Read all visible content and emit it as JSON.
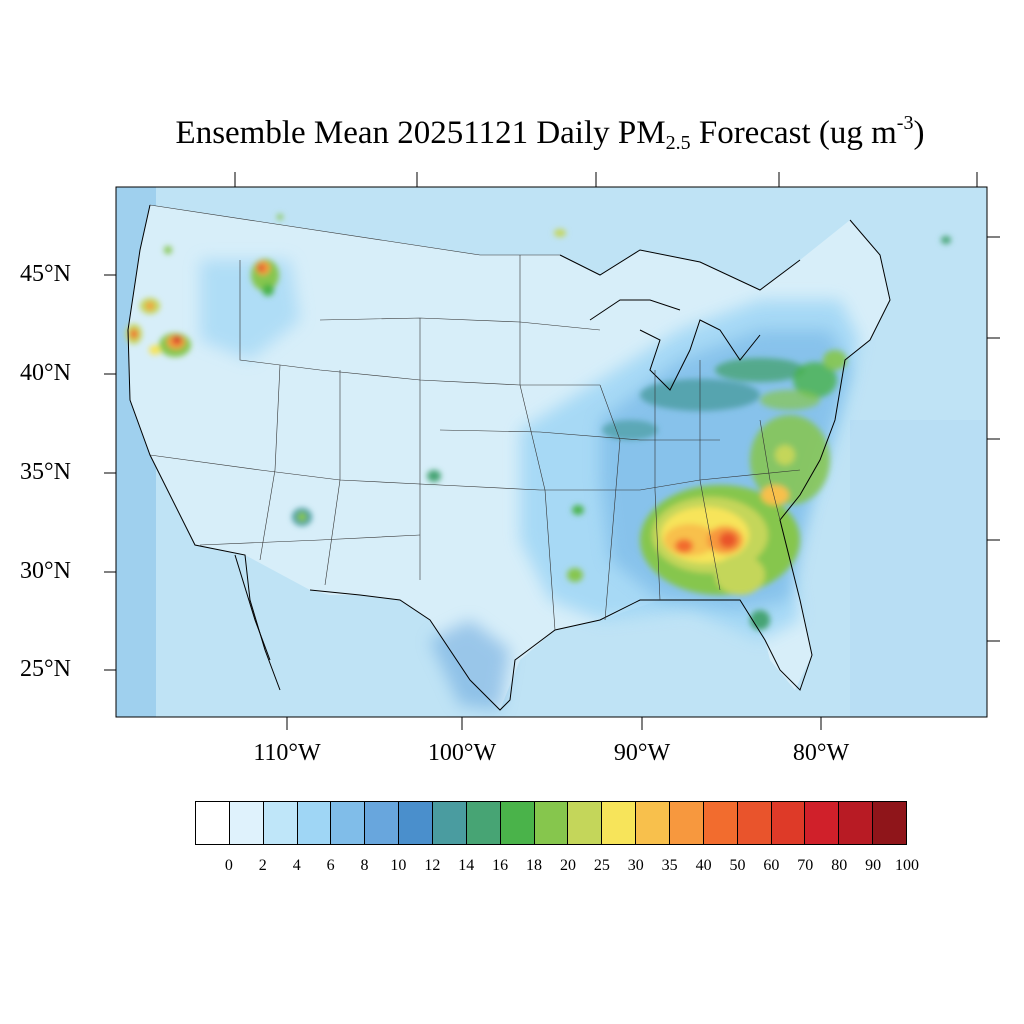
{
  "title": {
    "prefix": "Ensemble Mean 20251121 Daily PM",
    "subscript": "2.5",
    "middle": " Forecast (ug m",
    "superscript": "-3",
    "suffix": ")"
  },
  "map": {
    "projection": "lambert-conformal",
    "region": "CONUS",
    "lat_labels": [
      "45°N",
      "40°N",
      "35°N",
      "30°N",
      "25°N"
    ],
    "lon_labels": [
      "110°W",
      "100°W",
      "90°W",
      "80°W"
    ],
    "background_color": "#bfe3f5",
    "land_color": "#d7eef9",
    "hotspots": [
      {
        "name": "north-georgia-alabama",
        "value": 50
      },
      {
        "name": "southern-georgia",
        "value": 30
      },
      {
        "name": "carolinas",
        "value": 25
      },
      {
        "name": "ohio-valley",
        "value": 18
      },
      {
        "name": "northern-california",
        "value": 60
      },
      {
        "name": "oregon-coast",
        "value": 50
      },
      {
        "name": "idaho-montana",
        "value": 70
      },
      {
        "name": "arizona",
        "value": 18
      }
    ]
  },
  "colorbar": {
    "labels": [
      "0",
      "2",
      "4",
      "6",
      "8",
      "10",
      "12",
      "14",
      "16",
      "18",
      "20",
      "25",
      "30",
      "35",
      "40",
      "50",
      "60",
      "70",
      "80",
      "90",
      "100"
    ],
    "colors": [
      "#ffffff",
      "#dff2fc",
      "#bfe6f9",
      "#9fd6f5",
      "#80bde9",
      "#68a6dd",
      "#4a8fcc",
      "#4a9ca0",
      "#47a474",
      "#4ab34a",
      "#86c64d",
      "#c4d65a",
      "#f7e45a",
      "#f8c04c",
      "#f7983e",
      "#f26c2e",
      "#e9542c",
      "#de3a28",
      "#d0202a",
      "#b81b24",
      "#8f151a"
    ]
  }
}
